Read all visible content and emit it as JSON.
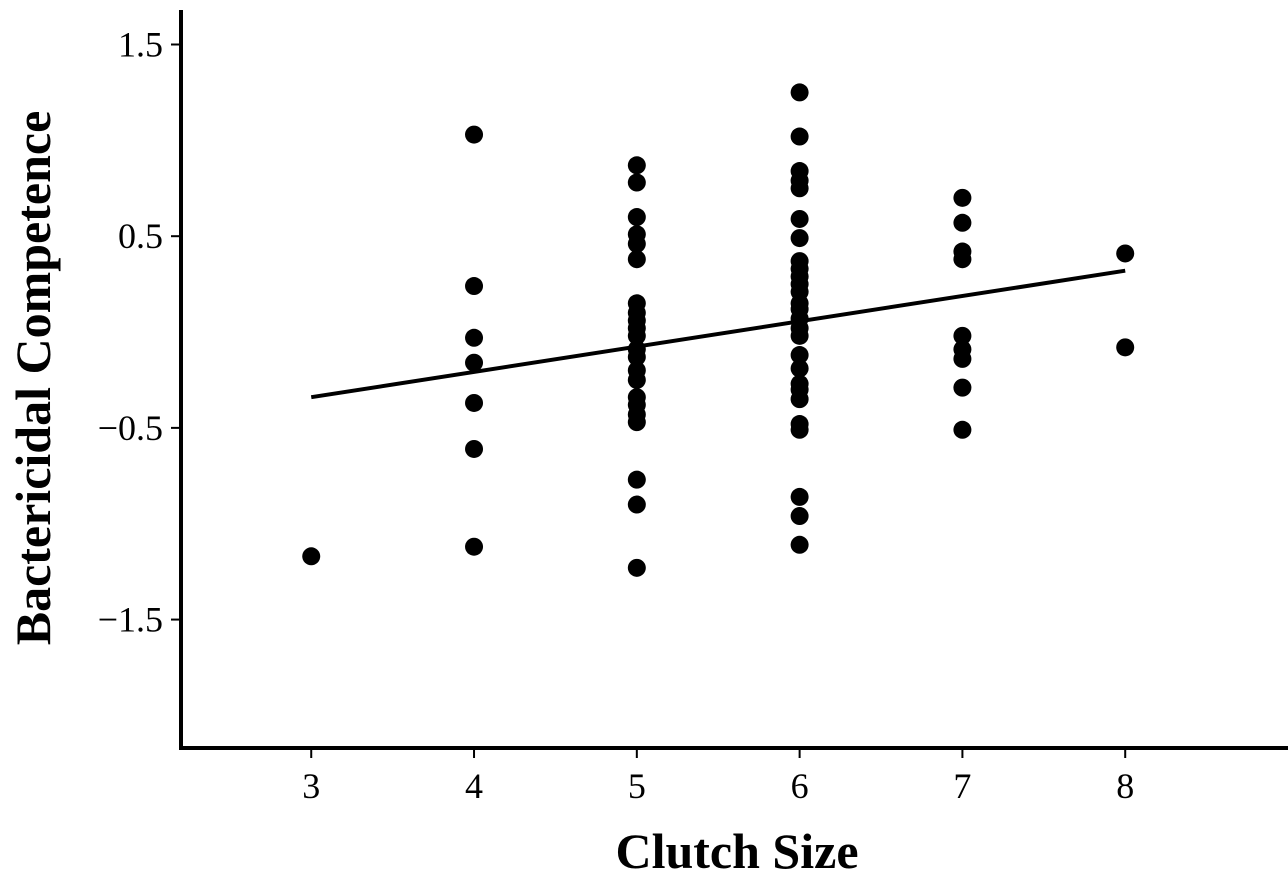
{
  "chart_data": {
    "type": "scatter",
    "title": "",
    "xlabel": "Clutch Size",
    "ylabel": "Bactericidal Competence",
    "xlim": [
      2.2,
      9.0
    ],
    "ylim": [
      -2.17,
      1.68
    ],
    "xticks": [
      3,
      4,
      5,
      6,
      7,
      8
    ],
    "xtick_labels": [
      "3",
      "4",
      "5",
      "6",
      "7",
      "8"
    ],
    "yticks": [
      1.5,
      0.5,
      -0.5,
      -1.5
    ],
    "ytick_labels": [
      "1.5",
      "0.5",
      "−0.5",
      "−1.5"
    ],
    "grid": false,
    "legend": "none",
    "marker_color": "#000000",
    "points": [
      {
        "x": 3,
        "y": -1.17
      },
      {
        "x": 4,
        "y": 1.03
      },
      {
        "x": 4,
        "y": 0.24
      },
      {
        "x": 4,
        "y": -0.03
      },
      {
        "x": 4,
        "y": -0.16
      },
      {
        "x": 4,
        "y": -0.37
      },
      {
        "x": 4,
        "y": -0.61
      },
      {
        "x": 4,
        "y": -1.12
      },
      {
        "x": 5,
        "y": 0.87
      },
      {
        "x": 5,
        "y": 0.78
      },
      {
        "x": 5,
        "y": 0.6
      },
      {
        "x": 5,
        "y": 0.51
      },
      {
        "x": 5,
        "y": 0.46
      },
      {
        "x": 5,
        "y": 0.38
      },
      {
        "x": 5,
        "y": 0.15
      },
      {
        "x": 5,
        "y": 0.1
      },
      {
        "x": 5,
        "y": 0.06
      },
      {
        "x": 5,
        "y": 0.02
      },
      {
        "x": 5,
        "y": -0.02
      },
      {
        "x": 5,
        "y": -0.09
      },
      {
        "x": 5,
        "y": -0.13
      },
      {
        "x": 5,
        "y": -0.2
      },
      {
        "x": 5,
        "y": -0.25
      },
      {
        "x": 5,
        "y": -0.34
      },
      {
        "x": 5,
        "y": -0.38
      },
      {
        "x": 5,
        "y": -0.43
      },
      {
        "x": 5,
        "y": -0.47
      },
      {
        "x": 5,
        "y": -0.77
      },
      {
        "x": 5,
        "y": -0.9
      },
      {
        "x": 5,
        "y": -1.23
      },
      {
        "x": 6,
        "y": 1.25
      },
      {
        "x": 6,
        "y": 1.02
      },
      {
        "x": 6,
        "y": 0.84
      },
      {
        "x": 6,
        "y": 0.79
      },
      {
        "x": 6,
        "y": 0.75
      },
      {
        "x": 6,
        "y": 0.59
      },
      {
        "x": 6,
        "y": 0.49
      },
      {
        "x": 6,
        "y": 0.37
      },
      {
        "x": 6,
        "y": 0.33
      },
      {
        "x": 6,
        "y": 0.29
      },
      {
        "x": 6,
        "y": 0.25
      },
      {
        "x": 6,
        "y": 0.21
      },
      {
        "x": 6,
        "y": 0.15
      },
      {
        "x": 6,
        "y": 0.12
      },
      {
        "x": 6,
        "y": 0.07
      },
      {
        "x": 6,
        "y": 0.02
      },
      {
        "x": 6,
        "y": -0.02
      },
      {
        "x": 6,
        "y": -0.12
      },
      {
        "x": 6,
        "y": -0.19
      },
      {
        "x": 6,
        "y": -0.27
      },
      {
        "x": 6,
        "y": -0.3
      },
      {
        "x": 6,
        "y": -0.35
      },
      {
        "x": 6,
        "y": -0.48
      },
      {
        "x": 6,
        "y": -0.51
      },
      {
        "x": 6,
        "y": -0.86
      },
      {
        "x": 6,
        "y": -0.96
      },
      {
        "x": 6,
        "y": -1.11
      },
      {
        "x": 7,
        "y": 0.7
      },
      {
        "x": 7,
        "y": 0.57
      },
      {
        "x": 7,
        "y": 0.42
      },
      {
        "x": 7,
        "y": 0.38
      },
      {
        "x": 7,
        "y": -0.02
      },
      {
        "x": 7,
        "y": -0.09
      },
      {
        "x": 7,
        "y": -0.14
      },
      {
        "x": 7,
        "y": -0.29
      },
      {
        "x": 7,
        "y": -0.51
      },
      {
        "x": 8,
        "y": 0.41
      },
      {
        "x": 8,
        "y": -0.08
      }
    ],
    "fit_line": {
      "x": [
        3,
        8
      ],
      "y": [
        -0.34,
        0.32
      ]
    }
  }
}
